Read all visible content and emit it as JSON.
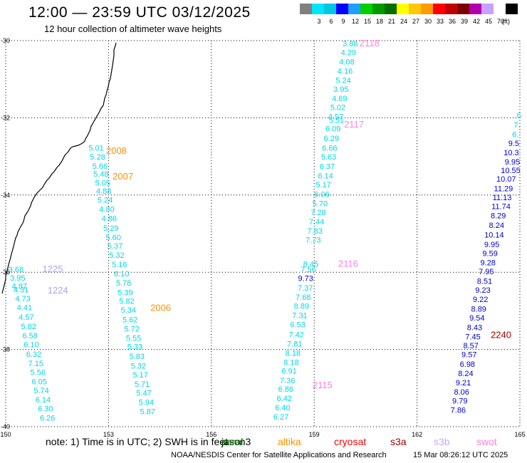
{
  "header": {
    "title": "12:00 — 23:59 UTC 03/12/2025",
    "subtitle": "12 hour collection of altimeter wave heights"
  },
  "colorbar": {
    "unit_label": "(ft)",
    "swatches": [
      {
        "color": "#808080",
        "label": ""
      },
      {
        "color": "#00e5ff",
        "label": "3"
      },
      {
        "color": "#00c8e0",
        "label": "6"
      },
      {
        "color": "#0000ff",
        "label": "9"
      },
      {
        "color": "#1fa0ff",
        "label": "12"
      },
      {
        "color": "#00d000",
        "label": "15"
      },
      {
        "color": "#009a00",
        "label": "18"
      },
      {
        "color": "#007000",
        "label": "21"
      },
      {
        "color": "#ffff00",
        "label": "24"
      },
      {
        "color": "#ffc800",
        "label": "27"
      },
      {
        "color": "#ff9a00",
        "label": "30"
      },
      {
        "color": "#ff0000",
        "label": "33"
      },
      {
        "color": "#c00000",
        "label": "36"
      },
      {
        "color": "#800000",
        "label": "39"
      },
      {
        "color": "#b000b0",
        "label": "42"
      },
      {
        "color": "#c8a0ff",
        "label": "45"
      },
      {
        "color": "#ffffff",
        "label": "70"
      },
      {
        "color": "#000000",
        "label": ""
      }
    ]
  },
  "map": {
    "lon_range": [
      150,
      165
    ],
    "lat_range": [
      -40,
      -30
    ],
    "lon_ticks": [
      "150",
      "153",
      "156",
      "159",
      "162",
      "165"
    ],
    "lat_ticks": [
      "-30",
      "-32",
      "-34",
      "-36",
      "-38",
      "-40"
    ],
    "gridlines": "dotted",
    "colors": {
      "cyan": "#00d7e6",
      "blue": "#0000d0",
      "orange": "#ff9000",
      "pink": "#ff80e0",
      "lavender": "#b0a0f0",
      "darkred": "#a00000"
    },
    "track_labels": [
      {
        "text": "2008",
        "lon": 152.93,
        "lat": -32.93,
        "color": "orange"
      },
      {
        "text": "2007",
        "lon": 153.12,
        "lat": -33.6,
        "color": "orange"
      },
      {
        "text": "2006",
        "lon": 154.22,
        "lat": -37.0,
        "color": "orange"
      },
      {
        "text": "2118",
        "lon": 160.32,
        "lat": -30.15,
        "color": "pink"
      },
      {
        "text": "2117",
        "lon": 159.87,
        "lat": -32.25,
        "color": "pink"
      },
      {
        "text": "2116",
        "lon": 159.7,
        "lat": -35.86,
        "color": "pink"
      },
      {
        "text": "2115",
        "lon": 158.95,
        "lat": -39.0,
        "color": "pink"
      },
      {
        "text": "1225",
        "lon": 151.07,
        "lat": -36.0,
        "color": "lavender"
      },
      {
        "text": "1224",
        "lon": 151.22,
        "lat": -36.55,
        "color": "lavender"
      },
      {
        "text": "2240",
        "lon": 164.15,
        "lat": -37.7,
        "color": "darkred"
      }
    ],
    "tracks": [
      {
        "color": "cyan",
        "points": [
          {
            "v": "5.01",
            "lon": 152.64,
            "lat": -32.85
          },
          {
            "v": "5.28",
            "lon": 152.68,
            "lat": -33.08
          },
          {
            "v": "5.66",
            "lon": 152.75,
            "lat": -33.32
          },
          {
            "v": "5.48",
            "lon": 152.78,
            "lat": -33.52
          },
          {
            "v": "5.05",
            "lon": 152.83,
            "lat": -33.75
          },
          {
            "v": "4.88",
            "lon": 152.86,
            "lat": -33.97
          },
          {
            "v": "5.24",
            "lon": 152.9,
            "lat": -34.2
          },
          {
            "v": "4.80",
            "lon": 152.95,
            "lat": -34.44
          },
          {
            "v": "4.86",
            "lon": 153.02,
            "lat": -34.68
          },
          {
            "v": "5.29",
            "lon": 153.07,
            "lat": -34.93
          },
          {
            "v": "5.60",
            "lon": 153.14,
            "lat": -35.17
          },
          {
            "v": "5.37",
            "lon": 153.19,
            "lat": -35.39
          },
          {
            "v": "5.32",
            "lon": 153.24,
            "lat": -35.63
          },
          {
            "v": "5.16",
            "lon": 153.32,
            "lat": -35.87
          },
          {
            "v": "6.10",
            "lon": 153.38,
            "lat": -36.11
          },
          {
            "v": "5.78",
            "lon": 153.44,
            "lat": -36.35
          },
          {
            "v": "5.39",
            "lon": 153.49,
            "lat": -36.6
          },
          {
            "v": "5.82",
            "lon": 153.53,
            "lat": -36.82
          },
          {
            "v": "5.34",
            "lon": 153.58,
            "lat": -37.05
          },
          {
            "v": "5.62",
            "lon": 153.63,
            "lat": -37.3
          },
          {
            "v": "5.72",
            "lon": 153.68,
            "lat": -37.54
          },
          {
            "v": "5.55",
            "lon": 153.73,
            "lat": -37.78
          },
          {
            "v": "5.33",
            "lon": 153.77,
            "lat": -38.0
          },
          {
            "v": "5.83",
            "lon": 153.83,
            "lat": -38.25
          },
          {
            "v": "5.32",
            "lon": 153.87,
            "lat": -38.5
          },
          {
            "v": "5.17",
            "lon": 153.93,
            "lat": -38.73
          },
          {
            "v": "5.71",
            "lon": 153.98,
            "lat": -38.97
          },
          {
            "v": "5.47",
            "lon": 154.03,
            "lat": -39.2
          },
          {
            "v": "5.94",
            "lon": 154.1,
            "lat": -39.44
          },
          {
            "v": "5.87",
            "lon": 154.14,
            "lat": -39.68
          }
        ]
      },
      {
        "color": "cyan",
        "points": [
          {
            "v": "3.68",
            "lon": 150.3,
            "lat": -36.0
          },
          {
            "v": "3.95",
            "lon": 150.35,
            "lat": -36.22
          },
          {
            "v": "4.87",
            "lon": 150.4,
            "lat": -36.43
          },
          {
            "v": "4.31",
            "lon": 150.45,
            "lat": -36.52
          },
          {
            "v": "4.73",
            "lon": 150.5,
            "lat": -36.75
          },
          {
            "v": "4.41",
            "lon": 150.55,
            "lat": -36.98
          },
          {
            "v": "4.57",
            "lon": 150.6,
            "lat": -37.23
          },
          {
            "v": "5.82",
            "lon": 150.67,
            "lat": -37.47
          },
          {
            "v": "6.58",
            "lon": 150.71,
            "lat": -37.71
          },
          {
            "v": "6.10",
            "lon": 150.75,
            "lat": -37.94
          },
          {
            "v": "6.32",
            "lon": 150.82,
            "lat": -38.19
          },
          {
            "v": "7.15",
            "lon": 150.88,
            "lat": -38.43
          },
          {
            "v": "5.56",
            "lon": 150.94,
            "lat": -38.66
          },
          {
            "v": "6.05",
            "lon": 150.98,
            "lat": -38.9
          },
          {
            "v": "5.74",
            "lon": 151.04,
            "lat": -39.13
          },
          {
            "v": "6.14",
            "lon": 151.09,
            "lat": -39.37
          },
          {
            "v": "6.30",
            "lon": 151.16,
            "lat": -39.6
          },
          {
            "v": "6.26",
            "lon": 151.22,
            "lat": -39.84
          }
        ]
      },
      {
        "color": "cyan",
        "points": [
          {
            "v": "3.88",
            "lon": 160.05,
            "lat": -30.15
          },
          {
            "v": "4.29",
            "lon": 160.0,
            "lat": -30.38
          },
          {
            "v": "4.08",
            "lon": 159.95,
            "lat": -30.62
          },
          {
            "v": "4.16",
            "lon": 159.9,
            "lat": -30.86
          },
          {
            "v": "5.24",
            "lon": 159.85,
            "lat": -31.1
          },
          {
            "v": "3.95",
            "lon": 159.78,
            "lat": -31.33
          },
          {
            "v": "4.69",
            "lon": 159.74,
            "lat": -31.57
          },
          {
            "v": "5.02",
            "lon": 159.69,
            "lat": -31.8
          },
          {
            "v": "4.57",
            "lon": 159.63,
            "lat": -32.04
          },
          {
            "v": "5.51",
            "lon": 159.65,
            "lat": -32.13
          },
          {
            "v": "6.09",
            "lon": 159.55,
            "lat": -32.35
          },
          {
            "v": "6.29",
            "lon": 159.5,
            "lat": -32.6
          },
          {
            "v": "6.66",
            "lon": 159.45,
            "lat": -32.85
          },
          {
            "v": "5.63",
            "lon": 159.42,
            "lat": -33.08
          },
          {
            "v": "6.37",
            "lon": 159.38,
            "lat": -33.33
          },
          {
            "v": "6.14",
            "lon": 159.33,
            "lat": -33.57
          },
          {
            "v": "5.17",
            "lon": 159.27,
            "lat": -33.8
          },
          {
            "v": "6.06",
            "lon": 159.22,
            "lat": -34.05
          },
          {
            "v": "5.70",
            "lon": 159.17,
            "lat": -34.29
          },
          {
            "v": "7.28",
            "lon": 159.12,
            "lat": -34.52
          },
          {
            "v": "7.44",
            "lon": 159.07,
            "lat": -34.76
          },
          {
            "v": "7.83",
            "lon": 159.02,
            "lat": -35.0
          },
          {
            "v": "7.73",
            "lon": 158.97,
            "lat": -35.23
          },
          {
            "v": "8.45",
            "lon": 158.9,
            "lat": -35.86
          },
          {
            "v": "7.56",
            "lon": 158.83,
            "lat": -36.0
          },
          {
            "v": "7.37",
            "lon": 158.74,
            "lat": -36.48
          },
          {
            "v": "7.68",
            "lon": 158.68,
            "lat": -36.72
          },
          {
            "v": "8.89",
            "lon": 158.63,
            "lat": -36.95
          },
          {
            "v": "7.31",
            "lon": 158.58,
            "lat": -37.19
          },
          {
            "v": "6.53",
            "lon": 158.52,
            "lat": -37.43
          },
          {
            "v": "7.42",
            "lon": 158.48,
            "lat": -37.68
          },
          {
            "v": "7.81",
            "lon": 158.43,
            "lat": -37.92
          },
          {
            "v": "8.18",
            "lon": 158.38,
            "lat": -38.16
          },
          {
            "v": "8.18",
            "lon": 158.33,
            "lat": -38.4
          },
          {
            "v": "6.91",
            "lon": 158.27,
            "lat": -38.63
          },
          {
            "v": "7.36",
            "lon": 158.22,
            "lat": -38.87
          },
          {
            "v": "6.86",
            "lon": 158.17,
            "lat": -39.1
          },
          {
            "v": "6.42",
            "lon": 158.13,
            "lat": -39.34
          },
          {
            "v": "6.40",
            "lon": 158.08,
            "lat": -39.58
          },
          {
            "v": "6.27",
            "lon": 158.03,
            "lat": -39.82
          }
        ]
      },
      {
        "color": "blue",
        "points": [
          {
            "v": "9.73",
            "lon": 158.75,
            "lat": -36.23
          }
        ]
      },
      {
        "color": "cyan",
        "points": [
          {
            "v": "6",
            "lon": 164.97,
            "lat": -32.0
          },
          {
            "v": "7.",
            "lon": 164.92,
            "lat": -32.25
          },
          {
            "v": "6.",
            "lon": 164.87,
            "lat": -32.5
          }
        ]
      },
      {
        "color": "blue",
        "points": [
          {
            "v": "9.5",
            "lon": 164.82,
            "lat": -32.73
          },
          {
            "v": "10.3",
            "lon": 164.75,
            "lat": -32.97
          },
          {
            "v": "9.95",
            "lon": 164.78,
            "lat": -33.21
          },
          {
            "v": "10.55",
            "lon": 164.73,
            "lat": -33.43
          },
          {
            "v": "10.07",
            "lon": 164.6,
            "lat": -33.65
          },
          {
            "v": "11.29",
            "lon": 164.52,
            "lat": -33.9
          },
          {
            "v": "11.13",
            "lon": 164.48,
            "lat": -34.13
          },
          {
            "v": "11.74",
            "lon": 164.45,
            "lat": -34.36
          },
          {
            "v": "8.29",
            "lon": 164.37,
            "lat": -34.6
          },
          {
            "v": "8.24",
            "lon": 164.32,
            "lat": -34.85
          },
          {
            "v": "10.14",
            "lon": 164.25,
            "lat": -35.1
          },
          {
            "v": "9.95",
            "lon": 164.18,
            "lat": -35.35
          },
          {
            "v": "9.59",
            "lon": 164.13,
            "lat": -35.58
          },
          {
            "v": "9.28",
            "lon": 164.07,
            "lat": -35.82
          },
          {
            "v": "7.95",
            "lon": 164.02,
            "lat": -36.05
          },
          {
            "v": "8.51",
            "lon": 163.97,
            "lat": -36.3
          },
          {
            "v": "9.23",
            "lon": 163.92,
            "lat": -36.53
          },
          {
            "v": "9.22",
            "lon": 163.85,
            "lat": -36.77
          },
          {
            "v": "8.89",
            "lon": 163.8,
            "lat": -37.02
          },
          {
            "v": "9.54",
            "lon": 163.75,
            "lat": -37.25
          },
          {
            "v": "8.43",
            "lon": 163.68,
            "lat": -37.5
          },
          {
            "v": "7.45",
            "lon": 163.63,
            "lat": -37.74
          },
          {
            "v": "8.57",
            "lon": 163.57,
            "lat": -37.97
          },
          {
            "v": "9.57",
            "lon": 163.52,
            "lat": -38.2
          },
          {
            "v": "6.98",
            "lon": 163.47,
            "lat": -38.45
          },
          {
            "v": "8.24",
            "lon": 163.42,
            "lat": -38.69
          },
          {
            "v": "9.21",
            "lon": 163.35,
            "lat": -38.93
          },
          {
            "v": "8.06",
            "lon": 163.3,
            "lat": -39.17
          },
          {
            "v": "9.79",
            "lon": 163.25,
            "lat": -39.4
          },
          {
            "v": "7.86",
            "lon": 163.2,
            "lat": -39.64
          }
        ]
      }
    ]
  },
  "footer": {
    "note": "note: 1) Time is in UTC; 2) SWH is in feet",
    "satellites": [
      {
        "name": "jason3",
        "color": "#000000"
      },
      {
        "name": "saral",
        "color": "#008000"
      },
      {
        "name": "altika",
        "color": "#ff9000"
      },
      {
        "name": "cryosat",
        "color": "#ff0000"
      },
      {
        "name": "s3a",
        "color": "#a00000"
      },
      {
        "name": "s3b",
        "color": "#c8a8ff"
      },
      {
        "name": "swot",
        "color": "#ff80e0"
      }
    ],
    "credit": "NOAA/NESDIS Center for Satellite Applications and Research",
    "timestamp": "15 Mar 08:26:12 UTC 2025"
  }
}
